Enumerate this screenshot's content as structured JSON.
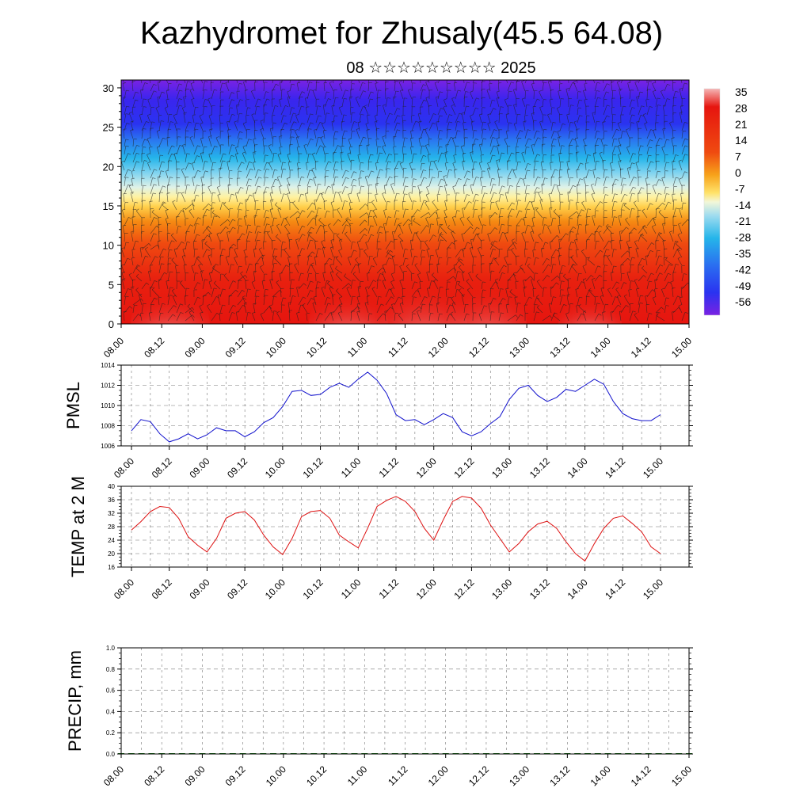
{
  "title": "Kazhydromet for Zhusaly(45.5 64.08)",
  "subtitle": "08 ☆☆☆☆☆☆☆☆☆ 2025",
  "chart_data": [
    {
      "type": "heatmap",
      "ylabel": "",
      "x_tick_labels": [
        "08.00",
        "08.12",
        "09.00",
        "09.12",
        "10.00",
        "10.12",
        "11.00",
        "11.12",
        "12.00",
        "12.12",
        "13.00",
        "13.12",
        "14.00",
        "14.12",
        "15.00"
      ],
      "ylim": [
        0,
        31
      ],
      "y_ticks": [
        0,
        5,
        10,
        15,
        20,
        25,
        30
      ],
      "colorbar_labels": [
        "35",
        "28",
        "21",
        "14",
        "7",
        "0",
        "-7",
        "-14",
        "-21",
        "-28",
        "-35",
        "-42",
        "-49",
        "-56"
      ],
      "colors": {
        "hot_top": "#f4a3a3",
        "red": "#e6150f",
        "orange": "#f07a10",
        "yellow": "#ffe26a",
        "pale": "#f3f7d8",
        "cyan": "#25b5ea",
        "blue": "#2a33f0",
        "violet": "#7a22e3"
      },
      "overlay": "wind barbs"
    },
    {
      "type": "line",
      "ylabel": "PMSL",
      "ylim": [
        1006,
        1014
      ],
      "y_ticks": [
        1006,
        1008,
        1010,
        1012,
        1014
      ],
      "x_tick_labels": [
        "08.00",
        "08.12",
        "09.00",
        "09.12",
        "10.00",
        "10.12",
        "11.00",
        "11.12",
        "12.00",
        "12.12",
        "13.00",
        "13.12",
        "14.00",
        "14.12",
        "15.00"
      ],
      "color": "#1010cc",
      "series": [
        {
          "values": [
            1007.5,
            1008.6,
            1008.4,
            1007.2,
            1006.4,
            1006.7,
            1007.2,
            1006.7,
            1007.1,
            1007.8,
            1007.5,
            1007.5,
            1006.9,
            1007.4,
            1008.3,
            1008.8,
            1009.9,
            1011.4,
            1011.5,
            1011.0,
            1011.1,
            1011.8,
            1012.2,
            1011.8,
            1012.6,
            1013.3,
            1012.5,
            1011.2,
            1009.1,
            1008.5,
            1008.6,
            1008.1,
            1008.6,
            1009.2,
            1008.8,
            1007.4,
            1007.0,
            1007.4,
            1008.2,
            1008.9,
            1010.6,
            1011.7,
            1012.0,
            1011.0,
            1010.4,
            1010.8,
            1011.6,
            1011.4,
            1012.0,
            1012.6,
            1012.1,
            1010.4,
            1009.2,
            1008.7,
            1008.5,
            1008.5,
            1009.1
          ]
        }
      ]
    },
    {
      "type": "line",
      "ylabel": "TEMP at 2 M",
      "ylim": [
        16,
        40
      ],
      "y_ticks": [
        16,
        20,
        24,
        28,
        32,
        36,
        40
      ],
      "x_tick_labels": [
        "08.00",
        "08.12",
        "09.00",
        "09.12",
        "10.00",
        "10.12",
        "11.00",
        "11.12",
        "12.00",
        "12.12",
        "13.00",
        "13.12",
        "14.00",
        "14.12",
        "15.00"
      ],
      "color": "#dd1010",
      "series": [
        {
          "values": [
            27.0,
            29.5,
            32.5,
            34.0,
            33.7,
            30.5,
            25.0,
            22.5,
            20.5,
            24.5,
            30.5,
            32.0,
            32.5,
            30.0,
            25.5,
            22.0,
            19.7,
            24.5,
            31.0,
            32.5,
            32.8,
            30.5,
            25.5,
            23.5,
            21.7,
            27.5,
            34.0,
            35.8,
            37.0,
            35.5,
            32.5,
            27.5,
            24.0,
            30.0,
            35.5,
            37.0,
            36.5,
            33.5,
            28.5,
            24.5,
            20.5,
            23.0,
            26.5,
            28.8,
            29.6,
            27.5,
            23.5,
            20.0,
            17.8,
            23.0,
            27.5,
            30.5,
            31.2,
            29.0,
            26.5,
            22.0,
            20.0
          ]
        }
      ]
    },
    {
      "type": "bar",
      "ylabel": "PRECIP, mm",
      "ylim": [
        0,
        1
      ],
      "y_tick_labels": [
        "0.0",
        "0.2",
        "0.4",
        "0.6",
        "0.8",
        "1.0"
      ],
      "x_tick_labels": [
        "08.00",
        "08.12",
        "09.00",
        "09.12",
        "10.00",
        "10.12",
        "11.00",
        "11.12",
        "12.00",
        "12.12",
        "13.00",
        "13.12",
        "14.00",
        "14.12",
        "15.00"
      ],
      "color": "#006400",
      "values": [
        0,
        0,
        0,
        0,
        0,
        0,
        0,
        0,
        0,
        0,
        0,
        0,
        0,
        0,
        0,
        0,
        0,
        0,
        0,
        0,
        0,
        0,
        0,
        0,
        0,
        0,
        0,
        0,
        0,
        0,
        0,
        0,
        0,
        0,
        0,
        0,
        0,
        0,
        0,
        0,
        0,
        0,
        0,
        0,
        0,
        0,
        0,
        0,
        0,
        0,
        0,
        0,
        0,
        0,
        0,
        0,
        0
      ]
    }
  ]
}
